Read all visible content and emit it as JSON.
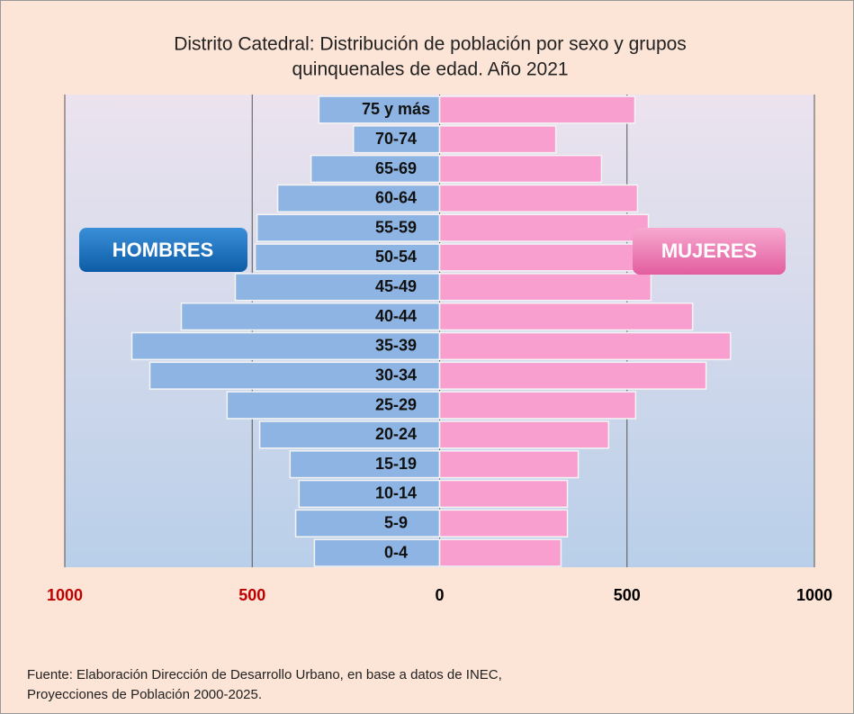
{
  "chart_data": {
    "type": "pyramid",
    "title": [
      "Distrito Catedral: Distribución de población por sexo y grupos",
      "quinquenales de edad. Año 2021"
    ],
    "categories": [
      "0-4",
      "5-9",
      "10-14",
      "15-19",
      "20-24",
      "25-29",
      "30-34",
      "35-39",
      "40-44",
      "45-49",
      "50-54",
      "55-59",
      "60-64",
      "65-69",
      "70-74",
      "75 y más"
    ],
    "series": [
      {
        "name": "HOMBRES",
        "color": "#8db4e2",
        "values": [
          -334,
          -384,
          -375,
          -399,
          -480,
          -567,
          -773,
          -821,
          -689,
          -545,
          -492,
          -487,
          -432,
          -343,
          -230,
          -322
        ]
      },
      {
        "name": "MUJERES",
        "color": "#f99fd0",
        "values": [
          324,
          341,
          341,
          370,
          451,
          523,
          711,
          776,
          675,
          564,
          545,
          557,
          528,
          432,
          310,
          521
        ]
      }
    ],
    "xlim": [
      -1000,
      1000
    ],
    "xticks": [
      {
        "value": -1000,
        "label": "1000"
      },
      {
        "value": -500,
        "label": "500"
      },
      0,
      500,
      1000
    ],
    "xtick_colors": [
      "#c00000",
      "#c00000",
      "#000000",
      "#000000",
      "#000000"
    ],
    "grid": true,
    "source": [
      "Fuente: Elaboración Dirección de Desarrollo Urbano, en base a datos de INEC,",
      "Proyecciones de Población 2000-2025."
    ]
  }
}
